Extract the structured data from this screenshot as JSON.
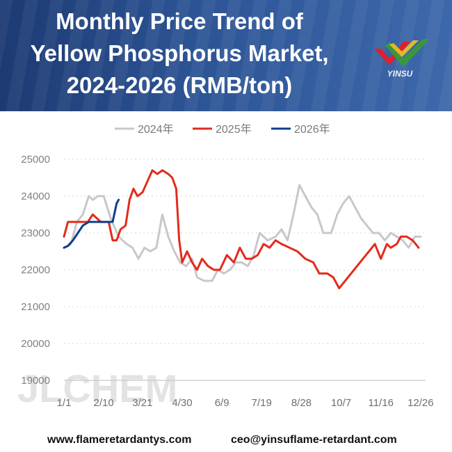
{
  "header": {
    "title": "Monthly Price Trend of\nYellow Phosphorus Market,\n2024-2026 (RMB/ton)",
    "logo_text": "YINSU",
    "background_color": "#2a4f8f"
  },
  "watermark": "JLCHEM",
  "footer": {
    "website": "www.flameretardantys.com",
    "email": "ceo@yinsuflame-retardant.com"
  },
  "chart_data": {
    "type": "line",
    "title": "",
    "xlabel": "",
    "ylabel": "",
    "ylim": [
      19000,
      25000
    ],
    "yticks": [
      25000,
      24000,
      23000,
      22000,
      21000,
      20000,
      19000
    ],
    "xlim": [
      1,
      365
    ],
    "xtick_labels": [
      "1/1",
      "2/10",
      "3/21",
      "4/30",
      "6/9",
      "7/19",
      "8/28",
      "10/7",
      "11/16",
      "12/26"
    ],
    "xtick_days": [
      1,
      41,
      80,
      120,
      160,
      200,
      240,
      280,
      320,
      360
    ],
    "grid": "horizontal-dotted",
    "legend_position": "top-center",
    "series": [
      {
        "name": "2024年",
        "color": "#c8c8c8",
        "points": [
          [
            1,
            22600
          ],
          [
            8,
            22700
          ],
          [
            14,
            23300
          ],
          [
            20,
            23500
          ],
          [
            26,
            24000
          ],
          [
            30,
            23900
          ],
          [
            35,
            24000
          ],
          [
            41,
            24000
          ],
          [
            48,
            23400
          ],
          [
            56,
            22900
          ],
          [
            64,
            22700
          ],
          [
            70,
            22600
          ],
          [
            76,
            22300
          ],
          [
            82,
            22600
          ],
          [
            88,
            22500
          ],
          [
            94,
            22600
          ],
          [
            100,
            23500
          ],
          [
            106,
            22900
          ],
          [
            112,
            22500
          ],
          [
            118,
            22200
          ],
          [
            124,
            22100
          ],
          [
            130,
            22300
          ],
          [
            135,
            21800
          ],
          [
            142,
            21700
          ],
          [
            150,
            21700
          ],
          [
            156,
            22000
          ],
          [
            162,
            21900
          ],
          [
            168,
            22000
          ],
          [
            174,
            22200
          ],
          [
            180,
            22200
          ],
          [
            186,
            22100
          ],
          [
            192,
            22400
          ],
          [
            198,
            23000
          ],
          [
            206,
            22800
          ],
          [
            214,
            22900
          ],
          [
            220,
            23100
          ],
          [
            226,
            22800
          ],
          [
            232,
            23500
          ],
          [
            238,
            24300
          ],
          [
            244,
            24000
          ],
          [
            250,
            23700
          ],
          [
            256,
            23500
          ],
          [
            262,
            23000
          ],
          [
            270,
            23000
          ],
          [
            276,
            23500
          ],
          [
            282,
            23800
          ],
          [
            288,
            24000
          ],
          [
            294,
            23700
          ],
          [
            300,
            23400
          ],
          [
            306,
            23200
          ],
          [
            312,
            23000
          ],
          [
            318,
            23000
          ],
          [
            324,
            22800
          ],
          [
            330,
            23000
          ],
          [
            336,
            22900
          ],
          [
            342,
            22800
          ],
          [
            348,
            22600
          ],
          [
            354,
            22900
          ],
          [
            360,
            22900
          ]
        ]
      },
      {
        "name": "2025年",
        "color": "#e32a1b",
        "points": [
          [
            1,
            22900
          ],
          [
            5,
            23300
          ],
          [
            15,
            23300
          ],
          [
            25,
            23300
          ],
          [
            30,
            23500
          ],
          [
            38,
            23300
          ],
          [
            46,
            23300
          ],
          [
            50,
            22800
          ],
          [
            54,
            22800
          ],
          [
            58,
            23100
          ],
          [
            63,
            23200
          ],
          [
            67,
            23900
          ],
          [
            71,
            24200
          ],
          [
            75,
            24000
          ],
          [
            80,
            24100
          ],
          [
            85,
            24400
          ],
          [
            90,
            24700
          ],
          [
            95,
            24600
          ],
          [
            100,
            24700
          ],
          [
            106,
            24600
          ],
          [
            110,
            24500
          ],
          [
            114,
            24200
          ],
          [
            117,
            22800
          ],
          [
            120,
            22200
          ],
          [
            125,
            22500
          ],
          [
            130,
            22200
          ],
          [
            135,
            22000
          ],
          [
            140,
            22300
          ],
          [
            146,
            22100
          ],
          [
            152,
            22000
          ],
          [
            158,
            22000
          ],
          [
            165,
            22400
          ],
          [
            172,
            22200
          ],
          [
            178,
            22600
          ],
          [
            184,
            22300
          ],
          [
            190,
            22300
          ],
          [
            196,
            22400
          ],
          [
            202,
            22700
          ],
          [
            208,
            22600
          ],
          [
            214,
            22800
          ],
          [
            220,
            22700
          ],
          [
            228,
            22600
          ],
          [
            236,
            22500
          ],
          [
            244,
            22300
          ],
          [
            252,
            22200
          ],
          [
            258,
            21900
          ],
          [
            266,
            21900
          ],
          [
            272,
            21800
          ],
          [
            278,
            21500
          ],
          [
            284,
            21700
          ],
          [
            290,
            21900
          ],
          [
            296,
            22100
          ],
          [
            302,
            22300
          ],
          [
            308,
            22500
          ],
          [
            314,
            22700
          ],
          [
            320,
            22300
          ],
          [
            326,
            22700
          ],
          [
            330,
            22600
          ],
          [
            336,
            22700
          ],
          [
            340,
            22900
          ],
          [
            346,
            22900
          ],
          [
            352,
            22800
          ],
          [
            358,
            22600
          ]
        ]
      },
      {
        "name": "2026年",
        "color": "#0f3d8c",
        "points": [
          [
            1,
            22600
          ],
          [
            5,
            22650
          ],
          [
            10,
            22800
          ],
          [
            15,
            23000
          ],
          [
            20,
            23200
          ],
          [
            26,
            23300
          ],
          [
            33,
            23300
          ],
          [
            40,
            23300
          ],
          [
            46,
            23300
          ],
          [
            50,
            23300
          ],
          [
            54,
            23800
          ],
          [
            56,
            23900
          ]
        ]
      }
    ]
  }
}
